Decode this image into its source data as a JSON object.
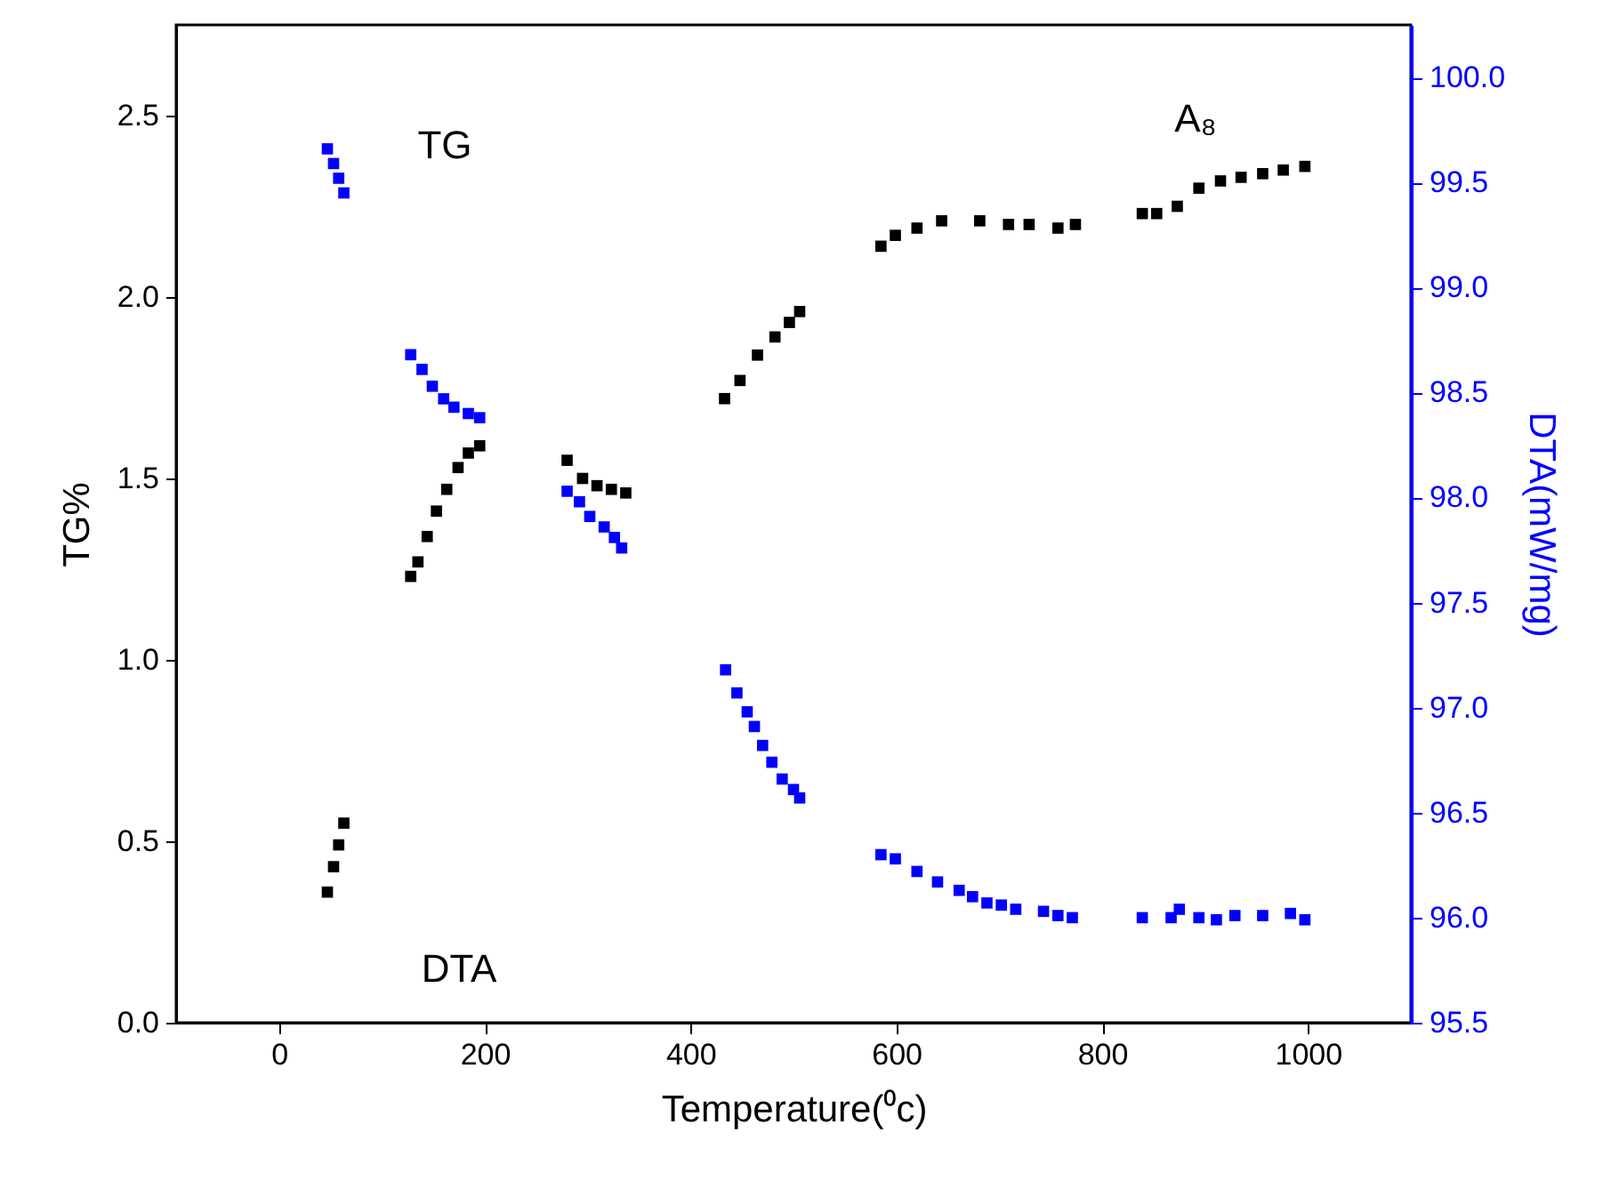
{
  "chart_data": {
    "type": "scatter",
    "marker": "square",
    "xlabel": "Temperature(⁰c)",
    "ylabel": "TG%",
    "y2label": "DTA(mW/mg)",
    "annotations": [
      "TG",
      "DTA",
      "A₈"
    ],
    "xlim": [
      -100,
      1100
    ],
    "xticks": [
      0,
      200,
      400,
      600,
      800,
      1000
    ],
    "ylim": [
      0,
      2.75
    ],
    "yticks": [
      {
        "value": 0,
        "label": "0.0"
      },
      {
        "value": 0.5,
        "label": "0.5"
      },
      {
        "value": 1,
        "label": "1.0"
      },
      {
        "value": 1.5,
        "label": "1.5"
      },
      {
        "value": 2,
        "label": "2.0"
      },
      {
        "value": 2.5,
        "label": "2.5"
      }
    ],
    "y2lim": [
      95.5,
      100.25
    ],
    "y2ticks": [
      {
        "value": 95.5,
        "label": "95.5"
      },
      {
        "value": 96,
        "label": "96.0"
      },
      {
        "value": 96.5,
        "label": "96.5"
      },
      {
        "value": 97,
        "label": "97.0"
      },
      {
        "value": 97.5,
        "label": "97.5"
      },
      {
        "value": 98,
        "label": "98.0"
      },
      {
        "value": 98.5,
        "label": "98.5"
      },
      {
        "value": 99,
        "label": "99.0"
      },
      {
        "value": 99.5,
        "label": "99.5"
      },
      {
        "value": 100,
        "label": "100.0"
      }
    ],
    "series": [
      {
        "color": "#000000",
        "x": [
          47,
          53,
          58,
          63,
          128,
          135,
          144,
          153,
          163,
          174,
          184,
          195,
          280,
          295,
          309,
          323,
          337,
          433,
          448,
          465,
          482,
          496,
          506,
          585,
          599,
          620,
          644,
          681,
          709,
          729,
          757,
          774,
          839,
          853,
          873,
          894,
          915,
          935,
          956,
          976,
          997
        ],
        "values": [
          0.36,
          0.43,
          0.49,
          0.55,
          1.23,
          1.27,
          1.34,
          1.41,
          1.47,
          1.53,
          1.57,
          1.59,
          1.55,
          1.5,
          1.48,
          1.47,
          1.46,
          1.72,
          1.77,
          1.84,
          1.89,
          1.93,
          1.96,
          2.14,
          2.17,
          2.19,
          2.21,
          2.21,
          2.2,
          2.2,
          2.19,
          2.2,
          2.23,
          2.23,
          2.25,
          2.3,
          2.32,
          2.33,
          2.34,
          2.35,
          2.36
        ]
      },
      {
        "color": "#0000ff",
        "axis": "y2",
        "x": [
          47,
          53,
          58,
          63,
          128,
          139,
          149,
          160,
          170,
          184,
          195,
          280,
          292,
          302,
          316,
          326,
          333,
          434,
          445,
          455,
          462,
          470,
          479,
          489,
          500,
          506,
          585,
          599,
          620,
          640,
          661,
          674,
          688,
          702,
          716,
          743,
          757,
          771,
          839,
          867,
          875,
          894,
          911,
          929,
          956,
          983,
          997
        ],
        "values": [
          99.66,
          99.59,
          99.52,
          99.45,
          98.68,
          98.61,
          98.53,
          98.47,
          98.43,
          98.4,
          98.38,
          98.03,
          97.98,
          97.91,
          97.86,
          97.81,
          97.76,
          97.18,
          97.07,
          96.98,
          96.91,
          96.82,
          96.74,
          96.66,
          96.61,
          96.57,
          96.3,
          96.28,
          96.22,
          96.17,
          96.13,
          96.1,
          96.07,
          96.06,
          96.04,
          96.03,
          96.01,
          96.0,
          96.0,
          96.0,
          96.04,
          96.0,
          95.99,
          96.01,
          96.01,
          96.02,
          95.99
        ]
      }
    ]
  }
}
